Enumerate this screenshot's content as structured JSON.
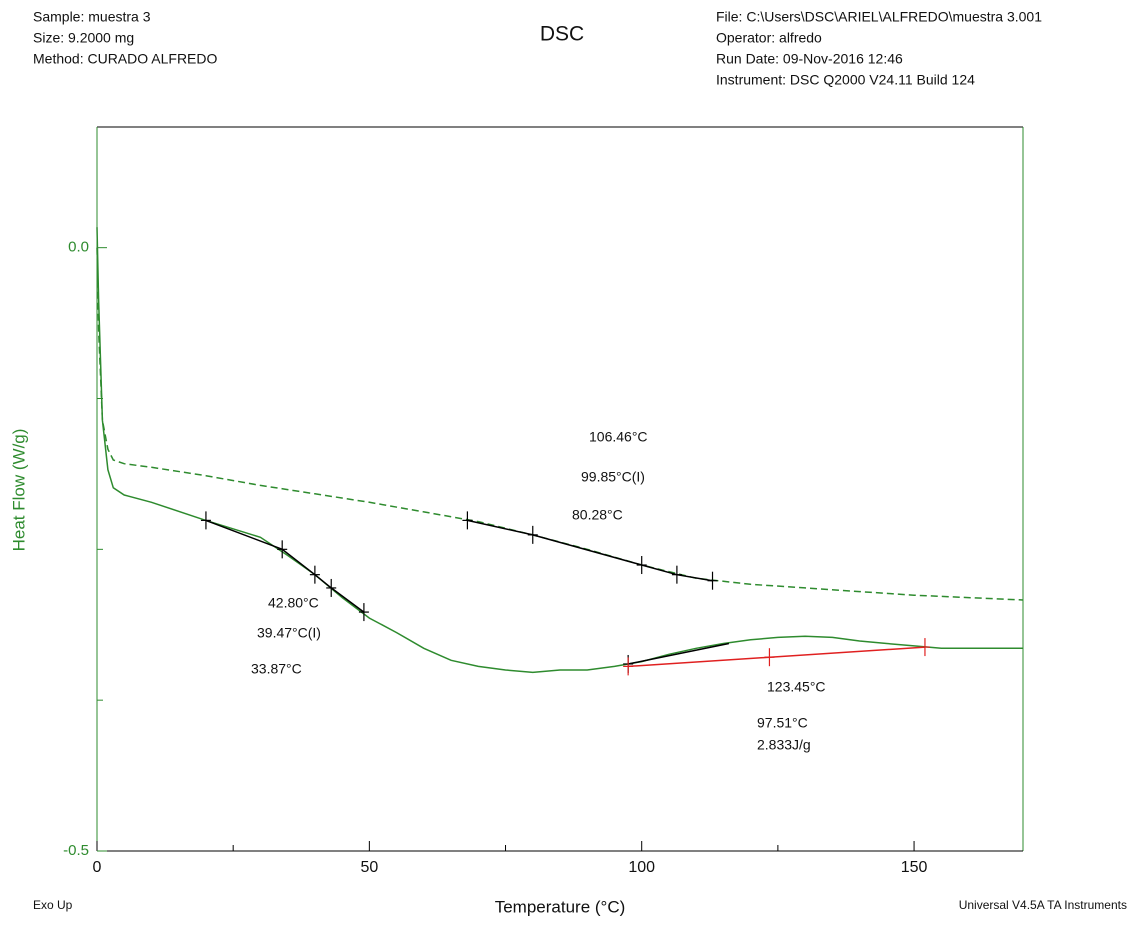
{
  "header": {
    "left": [
      "Sample: muestra 3",
      "Size:  9.2000 mg",
      "Method: CURADO ALFREDO"
    ],
    "right": [
      "File: C:\\Users\\DSC\\ARIEL\\ALFREDO\\muestra 3.001",
      "Operator: alfredo",
      "Run Date: 09-Nov-2016 12:46",
      "Instrument: DSC Q2000 V24.11 Build 124"
    ]
  },
  "footer": {
    "left": "Exo Up",
    "right": "Universal V4.5A TA Instruments"
  },
  "chart_data": {
    "type": "line",
    "title": "DSC",
    "xlabel": "Temperature (°C)",
    "ylabel": "Heat Flow (W/g)",
    "xlim": [
      0,
      170
    ],
    "xticks": [
      0,
      50,
      100,
      150
    ],
    "xminorticks": [
      25,
      75,
      125
    ],
    "ylim": [
      -0.5,
      0.1
    ],
    "yticks": [
      {
        "value": 0,
        "label": "0.0"
      },
      {
        "value": -0.5,
        "label": "-0.5"
      }
    ],
    "yminorticks": [
      -0.125,
      -0.25,
      -0.375
    ],
    "series": [
      {
        "color": "#2e8b2e",
        "style": "solid",
        "x": [
          0,
          0.3,
          1,
          2,
          3,
          5,
          10,
          20,
          30,
          35,
          40,
          45,
          50,
          55,
          60,
          65,
          70,
          75,
          80,
          85,
          90,
          95,
          100,
          105,
          110,
          115,
          120,
          125,
          130,
          135,
          140,
          145,
          150,
          155,
          160,
          170
        ],
        "values": [
          0.017,
          -0.043,
          -0.143,
          -0.184,
          -0.199,
          -0.205,
          -0.211,
          -0.226,
          -0.24,
          -0.255,
          -0.271,
          -0.29,
          -0.307,
          -0.319,
          -0.332,
          -0.342,
          -0.347,
          -0.35,
          -0.352,
          -0.35,
          -0.35,
          -0.347,
          -0.343,
          -0.337,
          -0.332,
          -0.328,
          -0.325,
          -0.323,
          -0.322,
          -0.323,
          -0.326,
          -0.328,
          -0.33,
          -0.332,
          -0.332,
          -0.332
        ]
      },
      {
        "color": "#2e8b2e",
        "style": "dashed",
        "x": [
          0,
          0.3,
          1,
          2,
          3,
          5,
          10,
          20,
          30,
          40,
          50,
          60,
          70,
          80,
          90,
          100,
          110,
          120,
          130,
          140,
          150,
          160,
          170
        ],
        "values": [
          0,
          -0.068,
          -0.143,
          -0.167,
          -0.176,
          -0.179,
          -0.182,
          -0.189,
          -0.197,
          -0.204,
          -0.211,
          -0.219,
          -0.227,
          -0.238,
          -0.25,
          -0.263,
          -0.274,
          -0.279,
          -0.282,
          -0.285,
          -0.288,
          -0.29,
          -0.292
        ]
      }
    ],
    "analysis": [
      {
        "color": "#000000",
        "x": [
          20,
          34,
          40,
          43,
          49
        ],
        "values": [
          -0.226,
          -0.25,
          -0.271,
          -0.282,
          -0.302
        ],
        "markers": [
          20,
          34,
          40,
          43,
          49
        ]
      },
      {
        "color": "#000000",
        "x": [
          68,
          80,
          100,
          106.46,
          113
        ],
        "values": [
          -0.226,
          -0.238,
          -0.263,
          -0.271,
          -0.276
        ],
        "markers": [
          68,
          80,
          100,
          106.46,
          113
        ]
      },
      {
        "color": "#000000",
        "x": [
          97.51,
          116
        ],
        "values": [
          -0.345,
          -0.328
        ],
        "markers": [
          97.51
        ]
      },
      {
        "color": "#e02020",
        "x": [
          97.51,
          152
        ],
        "values": [
          -0.347,
          -0.331
        ],
        "markers": [
          97.51,
          123.45,
          152
        ]
      }
    ],
    "annotations": [
      "106.46°C",
      "99.85°C(I)",
      "80.28°C",
      "42.80°C",
      "39.47°C(I)",
      "33.87°C",
      "123.45°C",
      "97.51°C",
      "2.833J/g"
    ]
  }
}
